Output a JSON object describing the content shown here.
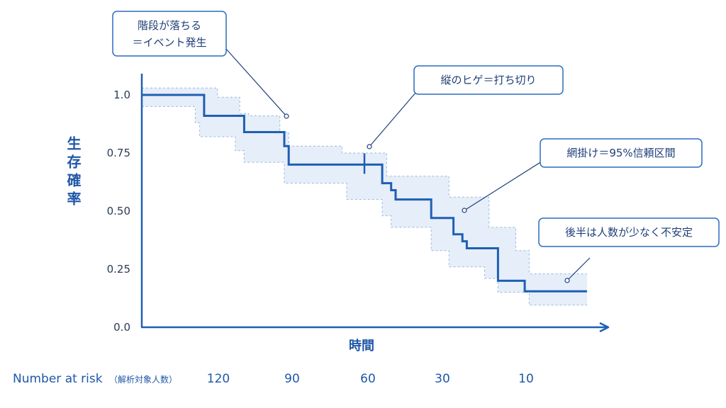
{
  "chart_data": {
    "type": "line",
    "subtype": "kaplan-meier-step",
    "ylabel": "生存確率",
    "xlabel": "時間",
    "ylim": [
      0,
      1
    ],
    "yticks": [
      {
        "value": 0,
        "label": "0.0"
      },
      {
        "value": 0.25,
        "label": "0.25"
      },
      {
        "value": 0.5,
        "label": "0.50"
      },
      {
        "value": 0.75,
        "label": "0.75"
      },
      {
        "value": 1,
        "label": "1.0"
      }
    ],
    "grid": false,
    "x_tick_labels": [],
    "series": [
      {
        "steps": [
          {
            "t": 0,
            "s": 1.0
          },
          {
            "t": 0.14,
            "s": 0.91
          },
          {
            "t": 0.23,
            "s": 0.84
          },
          {
            "t": 0.32,
            "s": 0.78
          },
          {
            "t": 0.33,
            "s": 0.7
          },
          {
            "t": 0.54,
            "s": 0.62
          },
          {
            "t": 0.56,
            "s": 0.59
          },
          {
            "t": 0.57,
            "s": 0.55
          },
          {
            "t": 0.65,
            "s": 0.47
          },
          {
            "t": 0.7,
            "s": 0.4
          },
          {
            "t": 0.72,
            "s": 0.37
          },
          {
            "t": 0.73,
            "s": 0.34
          },
          {
            "t": 0.8,
            "s": 0.2
          },
          {
            "t": 0.86,
            "s": 0.155
          }
        ],
        "t_end": 1.0,
        "censor_marks": [
          {
            "t": 0.5,
            "s": 0.7
          }
        ],
        "ci_upper": [
          {
            "t": 0,
            "s": 1.03
          },
          {
            "t": 0.17,
            "s": 0.99
          },
          {
            "t": 0.22,
            "s": 0.92
          },
          {
            "t": 0.24,
            "s": 0.91
          },
          {
            "t": 0.31,
            "s": 0.84
          },
          {
            "t": 0.33,
            "s": 0.78
          },
          {
            "t": 0.45,
            "s": 0.75
          },
          {
            "t": 0.55,
            "s": 0.65
          },
          {
            "t": 0.69,
            "s": 0.56
          },
          {
            "t": 0.78,
            "s": 0.43
          },
          {
            "t": 0.84,
            "s": 0.33
          },
          {
            "t": 0.87,
            "s": 0.23
          }
        ],
        "ci_lower": [
          {
            "t": 0,
            "s": 0.95
          },
          {
            "t": 0.12,
            "s": 0.88
          },
          {
            "t": 0.13,
            "s": 0.82
          },
          {
            "t": 0.21,
            "s": 0.76
          },
          {
            "t": 0.23,
            "s": 0.71
          },
          {
            "t": 0.32,
            "s": 0.62
          },
          {
            "t": 0.46,
            "s": 0.55
          },
          {
            "t": 0.54,
            "s": 0.48
          },
          {
            "t": 0.56,
            "s": 0.43
          },
          {
            "t": 0.65,
            "s": 0.33
          },
          {
            "t": 0.69,
            "s": 0.26
          },
          {
            "t": 0.77,
            "s": 0.21
          },
          {
            "t": 0.8,
            "s": 0.15
          },
          {
            "t": 0.87,
            "s": 0.095
          }
        ]
      }
    ]
  },
  "risk_table": {
    "label": "Number at risk",
    "label_note": "（解析対象人数）",
    "values": [
      "120",
      "90",
      "60",
      "30",
      "10"
    ]
  },
  "callouts": [
    {
      "id": "event",
      "lines": [
        "階段が落ちる",
        "＝イベント発生"
      ]
    },
    {
      "id": "censor",
      "lines": [
        "縦のヒゲ＝打ち切り"
      ]
    },
    {
      "id": "ci",
      "lines": [
        "網掛け＝95%信頼区間"
      ]
    },
    {
      "id": "late",
      "lines": [
        "後半は人数が少なく不安定"
      ]
    }
  ],
  "colors": {
    "line": "#1f5fb4",
    "band_fill": "#e6eef9",
    "band_edge": "#9db8de",
    "axis": "#1f5fb4",
    "callout_border": "#2b6cc0",
    "text_dark": "#2b3b57"
  }
}
